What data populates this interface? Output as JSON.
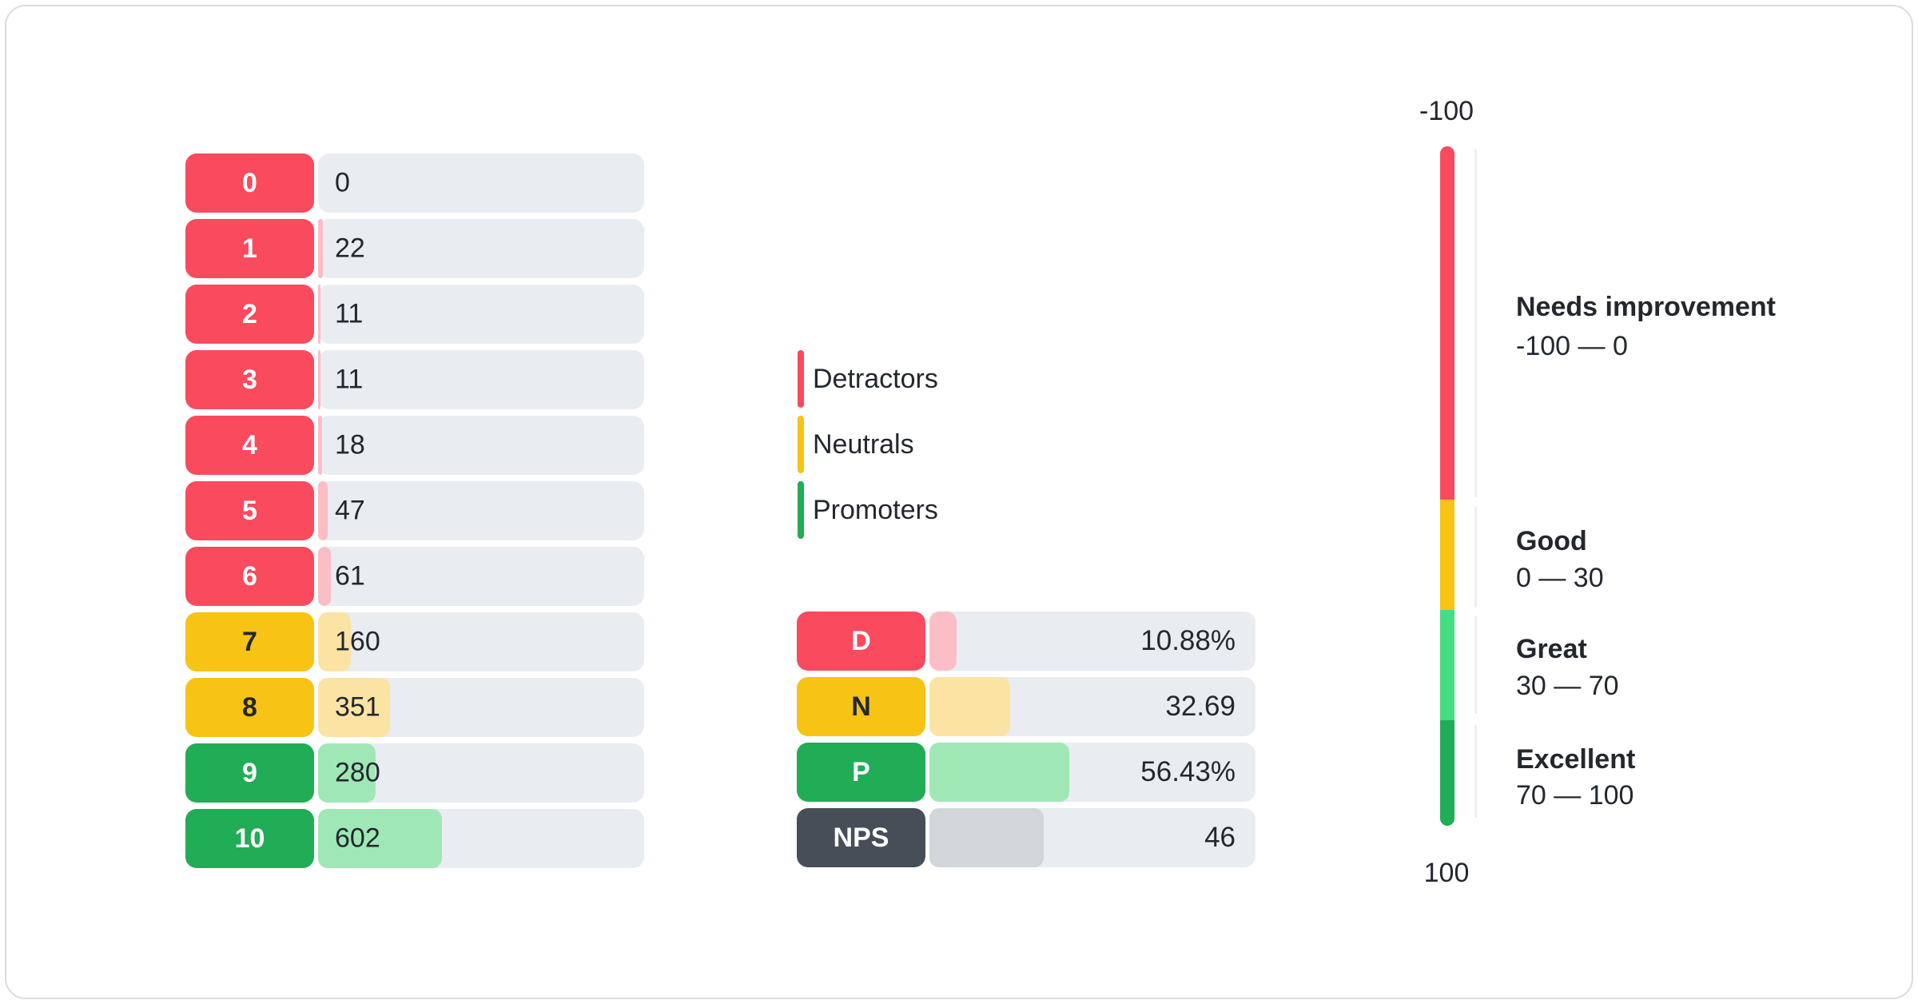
{
  "chart_data": [
    {
      "type": "bar",
      "orientation": "horizontal",
      "categories": [
        "0",
        "1",
        "2",
        "3",
        "4",
        "5",
        "6",
        "7",
        "8",
        "9",
        "10"
      ],
      "values": [
        0,
        22,
        11,
        11,
        18,
        47,
        61,
        160,
        351,
        280,
        602
      ],
      "groups": [
        "detractor",
        "detractor",
        "detractor",
        "detractor",
        "detractor",
        "detractor",
        "detractor",
        "neutral",
        "neutral",
        "promoter",
        "promoter"
      ],
      "legend_position": "right",
      "grid": false
    },
    {
      "type": "bar",
      "orientation": "horizontal",
      "categories": [
        "D",
        "N",
        "P",
        "NPS"
      ],
      "values": [
        10.88,
        32.69,
        56.43,
        46
      ],
      "value_labels": [
        "10.88%",
        "32.69",
        "56.43%",
        "46"
      ],
      "groups": [
        "detractor",
        "neutral",
        "promoter",
        "nps"
      ],
      "grid": false
    },
    {
      "type": "gauge",
      "orientation": "vertical",
      "axis_min": -100,
      "axis_max": 100,
      "axis_top_label": "-100",
      "axis_bottom_label": "100",
      "zones": [
        {
          "title": "Needs improvement",
          "range_label": "-100 — 0",
          "from": -100,
          "to": 0,
          "color_key": "detractor"
        },
        {
          "title": "Good",
          "range_label": "0 — 30",
          "from": 0,
          "to": 30,
          "color_key": "neutral"
        },
        {
          "title": "Great",
          "range_label": "30 — 70",
          "from": 30,
          "to": 70,
          "color_key": "great"
        },
        {
          "title": "Excellent",
          "range_label": "70 — 100",
          "from": 70,
          "to": 100,
          "color_key": "promoter"
        }
      ]
    }
  ],
  "legend": {
    "items": [
      {
        "label": "Detractors",
        "color": "#FA4A5E"
      },
      {
        "label": "Neutrals",
        "color": "#F7C315"
      },
      {
        "label": "Promoters",
        "color": "#21AC56"
      }
    ]
  },
  "colors": {
    "detractor": "#FA4A5E",
    "detractor_fill": "#FBBEC6",
    "neutral": "#F7C315",
    "neutral_fill": "#FBE3A4",
    "promoter": "#21AC56",
    "promoter_fill": "#9FE8B6",
    "great": "#47DD83",
    "nps": "#474E58",
    "nps_fill": "#D2D6DB",
    "track": "#E9ECF0",
    "text_dark": "#23272E",
    "text_on_color": "#FFFFFF",
    "divider": "#EDEEF2",
    "card_border": "#D8DCE2"
  }
}
